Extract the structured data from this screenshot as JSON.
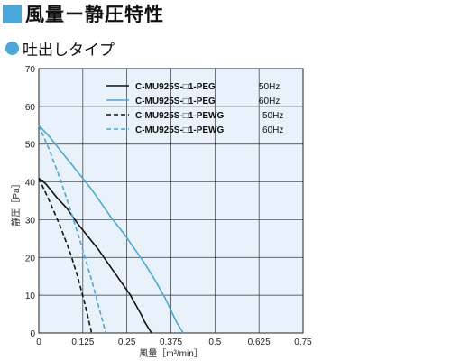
{
  "header": {
    "title": "風量ー静圧特性",
    "subtitle": "吐出しタイプ"
  },
  "colors": {
    "accent": "#4aa8dc",
    "plot_bg": "#e9f2fa",
    "black_series": "#111111",
    "blue_series": "#4aa8dc"
  },
  "chart_data": {
    "type": "line",
    "xlabel": "風量［m³/min］",
    "ylabel": "静圧［Pa］",
    "xlim": [
      0,
      0.75
    ],
    "ylim": [
      0,
      70
    ],
    "x_ticks": [
      "0",
      "0.125",
      "0.25",
      "0.375",
      "0.5",
      "0.625",
      "0.75"
    ],
    "y_ticks": [
      "0",
      "10",
      "20",
      "30",
      "40",
      "50",
      "60",
      "70"
    ],
    "grid": true,
    "legend_position": "top-right",
    "series": [
      {
        "name": "C-MU925S-□1-PEG",
        "freq": "50Hz",
        "color": "#111111",
        "dash": false,
        "points": [
          [
            0,
            41
          ],
          [
            0.02,
            39.5
          ],
          [
            0.05,
            36
          ],
          [
            0.08,
            33
          ],
          [
            0.11,
            29
          ],
          [
            0.14,
            25.5
          ],
          [
            0.17,
            22
          ],
          [
            0.2,
            18
          ],
          [
            0.23,
            14
          ],
          [
            0.26,
            10
          ],
          [
            0.29,
            5
          ],
          [
            0.3,
            3
          ],
          [
            0.32,
            0
          ]
        ]
      },
      {
        "name": "C-MU925S-□1-PEG",
        "freq": "60Hz",
        "color": "#4aa8dc",
        "dash": false,
        "points": [
          [
            0,
            55
          ],
          [
            0.03,
            52
          ],
          [
            0.06,
            48.5
          ],
          [
            0.09,
            45
          ],
          [
            0.12,
            41.5
          ],
          [
            0.15,
            38
          ],
          [
            0.18,
            34
          ],
          [
            0.21,
            30
          ],
          [
            0.24,
            26.5
          ],
          [
            0.27,
            22.5
          ],
          [
            0.3,
            18.5
          ],
          [
            0.33,
            14
          ],
          [
            0.36,
            9
          ],
          [
            0.39,
            3
          ],
          [
            0.41,
            0
          ]
        ]
      },
      {
        "name": "C-MU925S-□1-PEWG",
        "freq": "50Hz",
        "color": "#111111",
        "dash": true,
        "points": [
          [
            0,
            41
          ],
          [
            0.03,
            35
          ],
          [
            0.06,
            28.5
          ],
          [
            0.09,
            21
          ],
          [
            0.11,
            15
          ],
          [
            0.13,
            8
          ],
          [
            0.15,
            0
          ]
        ]
      },
      {
        "name": "C-MU925S-□1-PEWG",
        "freq": "60Hz",
        "color": "#4aa8dc",
        "dash": true,
        "points": [
          [
            0,
            55
          ],
          [
            0.03,
            48.5
          ],
          [
            0.06,
            41
          ],
          [
            0.09,
            32.5
          ],
          [
            0.12,
            23.5
          ],
          [
            0.15,
            14
          ],
          [
            0.17,
            7
          ],
          [
            0.19,
            0
          ]
        ]
      }
    ]
  }
}
